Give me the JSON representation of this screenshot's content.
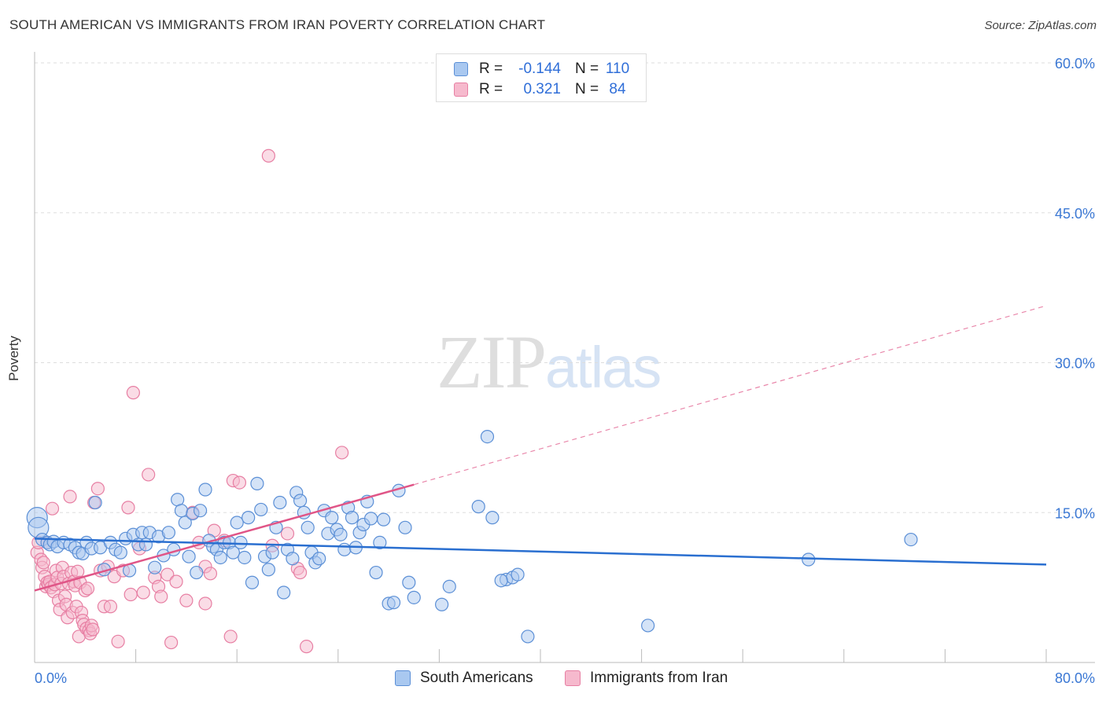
{
  "title": "SOUTH AMERICAN VS IMMIGRANTS FROM IRAN POVERTY CORRELATION CHART",
  "source": "Source: ZipAtlas.com",
  "watermark": {
    "zip": "ZIP",
    "atlas": "atlas"
  },
  "legend_top": [
    {
      "r_label": "R =",
      "r_value": "-0.144",
      "n_label": "N =",
      "n_value": "110"
    },
    {
      "r_label": "R =",
      "r_value": "0.321",
      "n_label": "N =",
      "n_value": "84"
    }
  ],
  "legend_bottom": [
    "South Americans",
    "Immigrants from Iran"
  ],
  "colors": {
    "blue_fill": "#a9c8f0",
    "blue_stroke": "#5b8fd6",
    "blue_line": "#2a6fd0",
    "pink_fill": "#f6b9cd",
    "pink_stroke": "#e77fa3",
    "pink_line": "#e05587",
    "axis_text": "#3b78d4",
    "grid": "#dddddd"
  },
  "chart_data": {
    "type": "scatter",
    "title": "SOUTH AMERICAN VS IMMIGRANTS FROM IRAN POVERTY CORRELATION CHART",
    "xlabel": "",
    "ylabel": "Poverty",
    "xlim": [
      0,
      80
    ],
    "ylim": [
      0,
      60
    ],
    "x_tick_labels": [
      "0.0%",
      "80.0%"
    ],
    "y_ticks": [
      15,
      30,
      45,
      60
    ],
    "y_tick_labels": [
      "15.0%",
      "30.0%",
      "45.0%",
      "60.0%"
    ],
    "grid": "horizontal dashed",
    "series": [
      {
        "name": "South Americans",
        "R": -0.144,
        "N": 110,
        "trend": {
          "x": [
            0,
            80
          ],
          "y": [
            12.4,
            9.8
          ]
        },
        "points": [
          [
            0.2,
            14.5
          ],
          [
            0.3,
            13.5
          ],
          [
            0.6,
            12.3
          ],
          [
            1.0,
            12.0
          ],
          [
            1.2,
            11.8
          ],
          [
            1.5,
            12.1
          ],
          [
            1.8,
            11.6
          ],
          [
            2.3,
            12.0
          ],
          [
            2.8,
            11.8
          ],
          [
            3.2,
            11.5
          ],
          [
            3.5,
            11.0
          ],
          [
            3.8,
            10.9
          ],
          [
            4.1,
            12.0
          ],
          [
            4.5,
            11.4
          ],
          [
            4.8,
            16.0
          ],
          [
            5.2,
            11.5
          ],
          [
            5.5,
            9.3
          ],
          [
            6.0,
            12.0
          ],
          [
            6.4,
            11.3
          ],
          [
            6.8,
            11.0
          ],
          [
            7.2,
            12.4
          ],
          [
            7.5,
            9.2
          ],
          [
            7.8,
            12.8
          ],
          [
            8.2,
            11.8
          ],
          [
            8.5,
            13.0
          ],
          [
            8.8,
            11.8
          ],
          [
            9.1,
            13.0
          ],
          [
            9.5,
            9.5
          ],
          [
            9.8,
            12.6
          ],
          [
            10.2,
            10.7
          ],
          [
            10.6,
            13.0
          ],
          [
            11.0,
            11.3
          ],
          [
            11.3,
            16.3
          ],
          [
            11.6,
            15.2
          ],
          [
            11.9,
            14.0
          ],
          [
            12.2,
            10.6
          ],
          [
            12.5,
            14.9
          ],
          [
            12.8,
            9.0
          ],
          [
            13.1,
            15.2
          ],
          [
            13.5,
            17.3
          ],
          [
            13.8,
            12.2
          ],
          [
            14.1,
            11.6
          ],
          [
            14.4,
            11.3
          ],
          [
            14.7,
            10.5
          ],
          [
            15.0,
            12.0
          ],
          [
            15.4,
            12.0
          ],
          [
            15.7,
            11.0
          ],
          [
            16.0,
            14.0
          ],
          [
            16.3,
            12.0
          ],
          [
            16.6,
            10.5
          ],
          [
            16.9,
            14.5
          ],
          [
            17.2,
            8.0
          ],
          [
            17.6,
            17.9
          ],
          [
            17.9,
            15.3
          ],
          [
            18.2,
            10.6
          ],
          [
            18.5,
            9.3
          ],
          [
            18.8,
            11.0
          ],
          [
            19.1,
            13.5
          ],
          [
            19.4,
            16.0
          ],
          [
            19.7,
            7.0
          ],
          [
            20.0,
            11.3
          ],
          [
            20.4,
            10.4
          ],
          [
            20.7,
            17.0
          ],
          [
            21.0,
            16.2
          ],
          [
            21.3,
            15.0
          ],
          [
            21.6,
            13.5
          ],
          [
            21.9,
            11.0
          ],
          [
            22.2,
            10.0
          ],
          [
            22.5,
            10.4
          ],
          [
            22.9,
            15.2
          ],
          [
            23.2,
            12.9
          ],
          [
            23.5,
            14.5
          ],
          [
            23.9,
            13.3
          ],
          [
            24.2,
            12.8
          ],
          [
            24.5,
            11.3
          ],
          [
            24.8,
            15.5
          ],
          [
            25.1,
            14.5
          ],
          [
            25.4,
            11.5
          ],
          [
            25.7,
            13.0
          ],
          [
            26.0,
            13.8
          ],
          [
            26.3,
            16.1
          ],
          [
            26.6,
            14.4
          ],
          [
            27.0,
            9.0
          ],
          [
            27.3,
            12.0
          ],
          [
            27.6,
            14.3
          ],
          [
            28.0,
            5.9
          ],
          [
            28.4,
            6.0
          ],
          [
            28.8,
            17.2
          ],
          [
            29.3,
            13.5
          ],
          [
            29.6,
            8.0
          ],
          [
            30.0,
            6.5
          ],
          [
            32.2,
            5.8
          ],
          [
            32.8,
            7.6
          ],
          [
            35.1,
            15.6
          ],
          [
            35.8,
            22.6
          ],
          [
            36.2,
            14.5
          ],
          [
            37.3,
            8.3
          ],
          [
            37.8,
            8.5
          ],
          [
            38.2,
            8.8
          ],
          [
            39.0,
            2.6
          ],
          [
            48.5,
            3.7
          ],
          [
            61.2,
            10.3
          ],
          [
            69.3,
            12.3
          ],
          [
            36.9,
            8.2
          ]
        ]
      },
      {
        "name": "Immigrants from Iran",
        "R": 0.321,
        "N": 84,
        "trend": {
          "x": [
            0,
            30
          ],
          "y": [
            7.2,
            17.8
          ]
        },
        "trend_dashed": {
          "x": [
            30,
            80
          ],
          "y": [
            17.8,
            35.7
          ]
        },
        "points": [
          [
            0.2,
            11.0
          ],
          [
            0.3,
            12.0
          ],
          [
            0.5,
            10.3
          ],
          [
            0.6,
            9.5
          ],
          [
            0.7,
            10.0
          ],
          [
            0.8,
            8.6
          ],
          [
            0.9,
            7.6
          ],
          [
            1.0,
            8.0
          ],
          [
            1.1,
            7.8
          ],
          [
            1.2,
            8.1
          ],
          [
            1.3,
            7.5
          ],
          [
            1.4,
            15.4
          ],
          [
            1.5,
            7.1
          ],
          [
            1.6,
            7.8
          ],
          [
            1.7,
            9.2
          ],
          [
            1.8,
            8.5
          ],
          [
            1.9,
            6.2
          ],
          [
            2.0,
            5.3
          ],
          [
            2.1,
            7.9
          ],
          [
            2.2,
            9.5
          ],
          [
            2.3,
            8.6
          ],
          [
            2.4,
            6.6
          ],
          [
            2.5,
            5.8
          ],
          [
            2.6,
            4.5
          ],
          [
            2.7,
            7.9
          ],
          [
            2.8,
            16.6
          ],
          [
            2.9,
            9.0
          ],
          [
            3.0,
            5.0
          ],
          [
            3.1,
            8.1
          ],
          [
            3.2,
            7.7
          ],
          [
            3.3,
            5.6
          ],
          [
            3.4,
            9.1
          ],
          [
            3.5,
            2.6
          ],
          [
            3.6,
            8.0
          ],
          [
            3.7,
            5.0
          ],
          [
            3.8,
            4.2
          ],
          [
            3.9,
            3.8
          ],
          [
            4.0,
            7.2
          ],
          [
            4.1,
            3.4
          ],
          [
            4.2,
            7.4
          ],
          [
            4.3,
            3.2
          ],
          [
            4.4,
            2.9
          ],
          [
            4.5,
            3.7
          ],
          [
            4.6,
            3.3
          ],
          [
            4.7,
            16.0
          ],
          [
            5.0,
            17.4
          ],
          [
            5.2,
            9.2
          ],
          [
            5.5,
            5.6
          ],
          [
            5.8,
            9.6
          ],
          [
            6.0,
            5.6
          ],
          [
            6.3,
            8.6
          ],
          [
            6.6,
            2.1
          ],
          [
            7.0,
            9.2
          ],
          [
            7.4,
            15.5
          ],
          [
            7.6,
            6.8
          ],
          [
            7.8,
            27.0
          ],
          [
            8.3,
            11.4
          ],
          [
            8.6,
            7.0
          ],
          [
            9.0,
            18.8
          ],
          [
            9.5,
            8.5
          ],
          [
            9.8,
            7.6
          ],
          [
            10.0,
            6.6
          ],
          [
            10.5,
            8.8
          ],
          [
            10.8,
            2.0
          ],
          [
            11.2,
            8.1
          ],
          [
            12.0,
            6.2
          ],
          [
            12.5,
            15.0
          ],
          [
            13.0,
            12.0
          ],
          [
            13.5,
            9.6
          ],
          [
            13.9,
            8.9
          ],
          [
            14.2,
            13.2
          ],
          [
            15.0,
            12.2
          ],
          [
            15.5,
            2.6
          ],
          [
            15.7,
            18.2
          ],
          [
            16.2,
            18.0
          ],
          [
            18.5,
            50.7
          ],
          [
            18.8,
            11.7
          ],
          [
            20.0,
            12.9
          ],
          [
            20.8,
            9.4
          ],
          [
            21.0,
            9.0
          ],
          [
            21.5,
            1.6
          ],
          [
            24.3,
            21.0
          ],
          [
            13.5,
            5.9
          ],
          [
            1.0,
            12.0
          ]
        ]
      }
    ]
  }
}
